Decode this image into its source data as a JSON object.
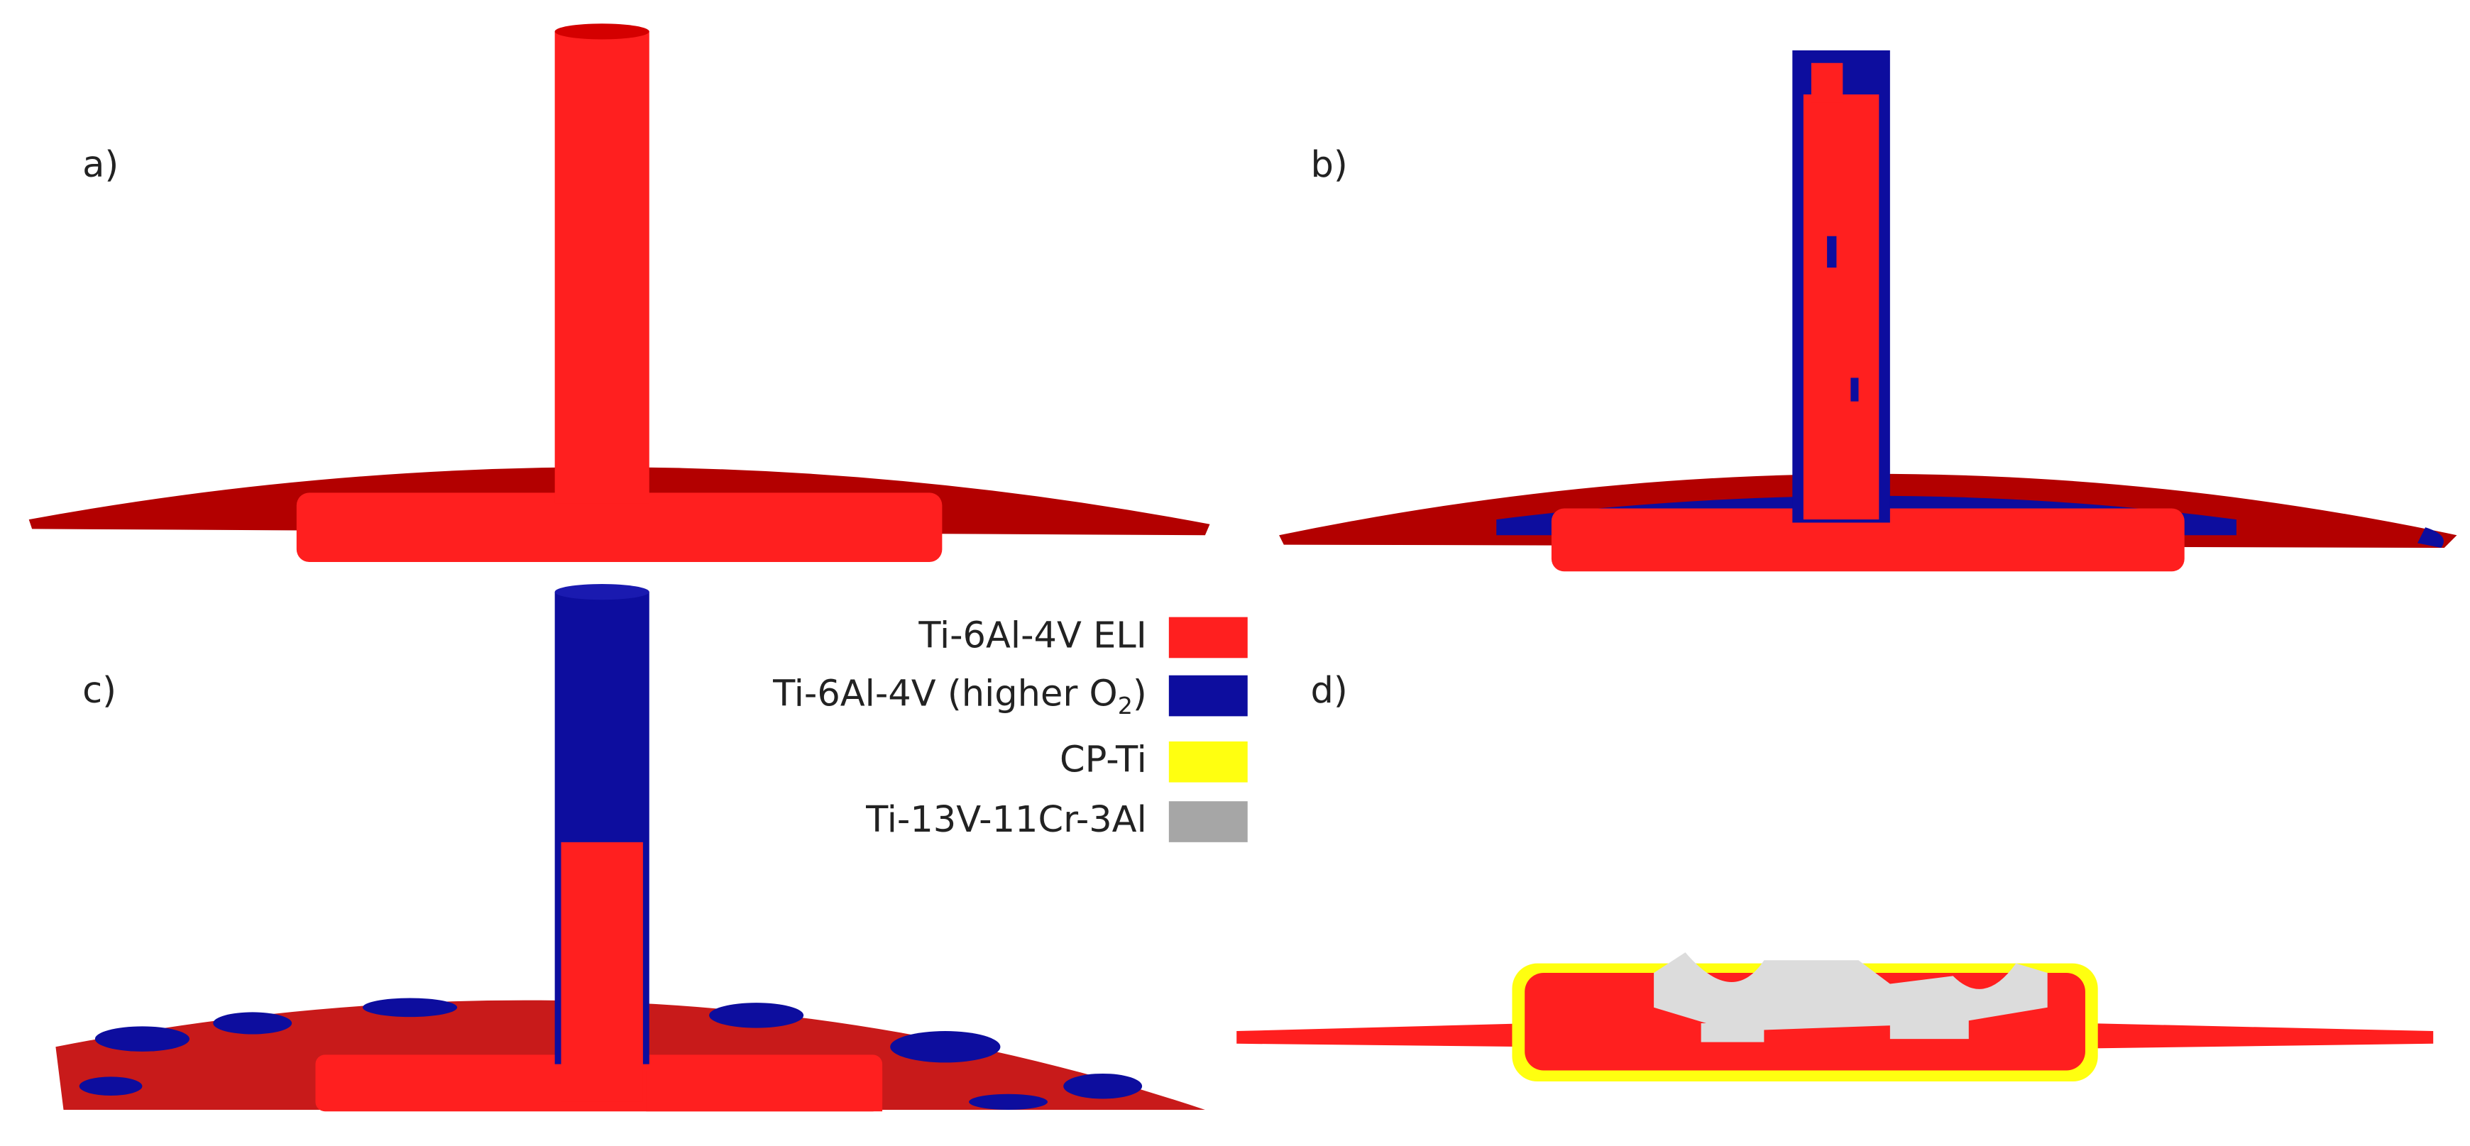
{
  "panels": [
    {
      "label": "a)"
    },
    {
      "label": "b)"
    },
    {
      "label": "c)"
    },
    {
      "label": "d)"
    }
  ],
  "legend": {
    "items": [
      {
        "label": "Ti-6Al-4V ELI",
        "color": "#ff1f1f"
      },
      {
        "label": "Ti-6Al-4V (higher O",
        "subscript": "2",
        "suffix": ")",
        "color": "#0d0d9e"
      },
      {
        "label": "CP-Ti",
        "color": "#ffff10"
      },
      {
        "label": "Ti-13V-11Cr-3Al",
        "color": "#a6a6a6"
      }
    ]
  }
}
